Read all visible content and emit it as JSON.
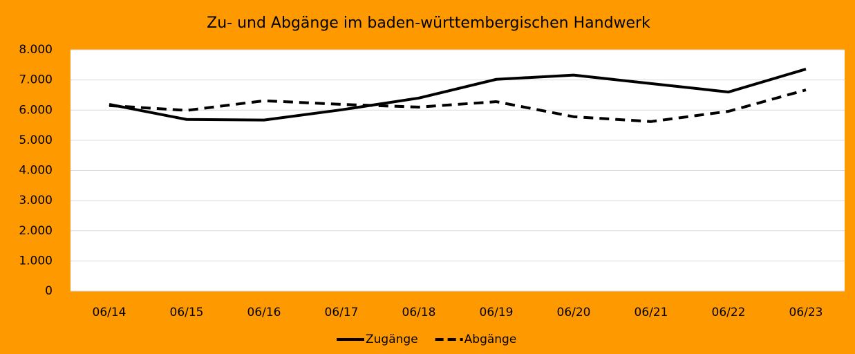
{
  "chart_data": {
    "type": "line",
    "title": "Zu- und Abgänge im baden-württembergischen Handwerk",
    "categories": [
      "06/14",
      "06/15",
      "06/16",
      "06/17",
      "06/18",
      "06/19",
      "06/20",
      "06/21",
      "06/22",
      "06/23"
    ],
    "series": [
      {
        "name": "Zugänge",
        "color": "#000000",
        "line_style": "solid",
        "values": [
          6190,
          5690,
          5670,
          6010,
          6400,
          7020,
          7160,
          6880,
          6600,
          7360
        ]
      },
      {
        "name": "Abgänge",
        "color": "#000000",
        "line_style": "dashed",
        "values": [
          6150,
          5990,
          6310,
          6190,
          6100,
          6280,
          5780,
          5620,
          5960,
          6670
        ]
      }
    ],
    "ylim": [
      0,
      8000
    ],
    "yticks": [
      0,
      {
        "value": 1000,
        "label": "1.000"
      },
      {
        "value": 2000,
        "label": "2.000"
      },
      {
        "value": 3000,
        "label": "3.000"
      },
      {
        "value": 4000,
        "label": "4.000"
      },
      {
        "value": 5000,
        "label": "5.000"
      },
      {
        "value": 6000,
        "label": "6.000"
      },
      {
        "value": 7000,
        "label": "7.000"
      },
      {
        "value": 8000,
        "label": "8.000"
      }
    ],
    "grid": true,
    "legend": "bottom",
    "background": "#ff9900",
    "plot_background": "#ffffff"
  }
}
